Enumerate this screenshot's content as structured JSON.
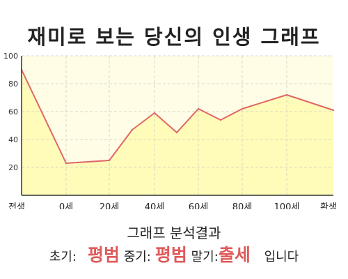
{
  "title": "재미로 보는 당신의 인생 그래프",
  "chart_data": {
    "type": "area",
    "x_tick_labels": [
      "전생",
      "0세",
      "20세",
      "40세",
      "60세",
      "80세",
      "100세",
      "환생"
    ],
    "y_ticks": [
      20,
      40,
      60,
      80,
      100
    ],
    "ylim": [
      0,
      100
    ],
    "grid": true,
    "colors": {
      "line": "#e06666",
      "fill": "#fffbb8",
      "background": "#fffde6"
    },
    "points": [
      {
        "x": "전생",
        "y": 90
      },
      {
        "x": "0세",
        "y": 23
      },
      {
        "x": "20세",
        "y": 25
      },
      {
        "x": "30세",
        "y": 47
      },
      {
        "x": "40세",
        "y": 59
      },
      {
        "x": "50세",
        "y": 45
      },
      {
        "x": "60세",
        "y": 62
      },
      {
        "x": "70세",
        "y": 54
      },
      {
        "x": "80세",
        "y": 62
      },
      {
        "x": "100세",
        "y": 72
      },
      {
        "x": "환생",
        "y": 61
      }
    ]
  },
  "summary": {
    "heading": "그래프 분석결과",
    "early_label": "초기:",
    "early_value": "평범",
    "middle_label": "중기:",
    "middle_value": "평범",
    "late_label": "말기:",
    "late_value": "출세",
    "ending": "입니다"
  }
}
